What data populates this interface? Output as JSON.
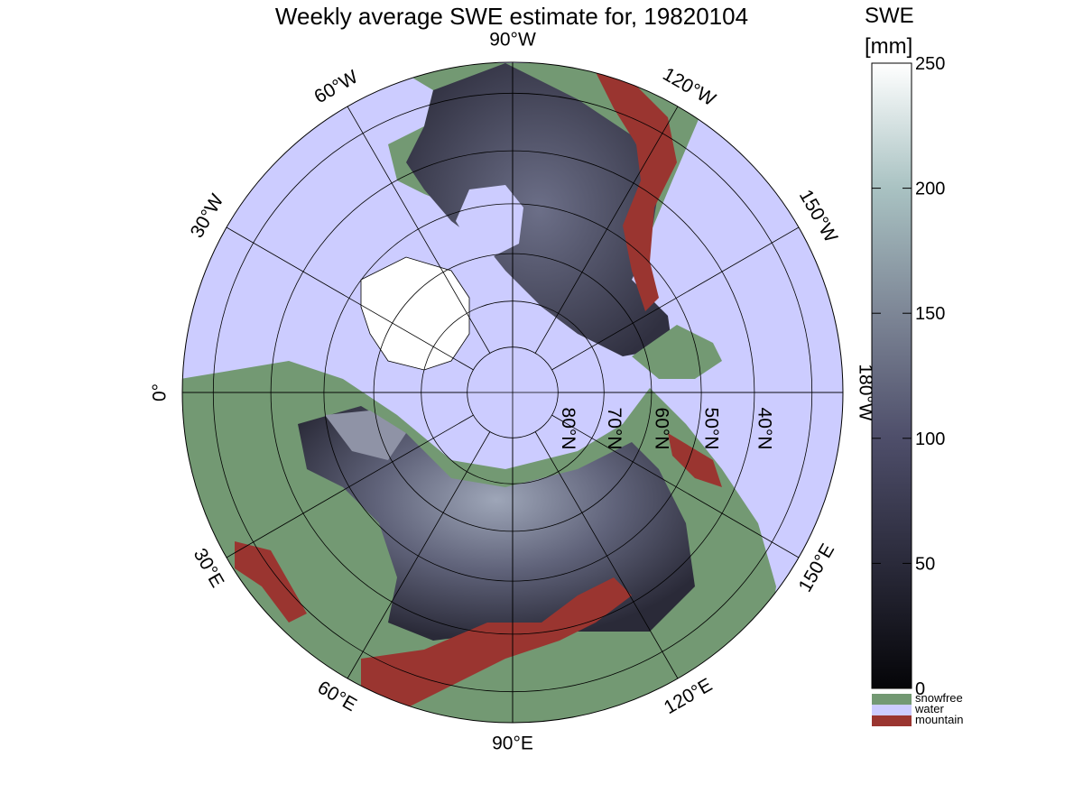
{
  "chart_data": {
    "type": "heatmap",
    "title": "Weekly average SWE estimate for, 19820104",
    "projection": "north polar stereographic",
    "longitude_labels": [
      {
        "lon": 0,
        "text": "0°"
      },
      {
        "lon": -30,
        "text": "30°W"
      },
      {
        "lon": -60,
        "text": "60°W"
      },
      {
        "lon": -90,
        "text": "90°W"
      },
      {
        "lon": -120,
        "text": "120°W"
      },
      {
        "lon": -150,
        "text": "150°W"
      },
      {
        "lon": 180,
        "text": "180°W"
      },
      {
        "lon": 30,
        "text": "30°E"
      },
      {
        "lon": 60,
        "text": "60°E"
      },
      {
        "lon": 90,
        "text": "90°E"
      },
      {
        "lon": 120,
        "text": "120°E"
      },
      {
        "lon": 150,
        "text": "150°E"
      }
    ],
    "latitude_labels": [
      {
        "lat": 80,
        "text": "80°N"
      },
      {
        "lat": 70,
        "text": "70°N"
      },
      {
        "lat": 60,
        "text": "60°N"
      },
      {
        "lat": 50,
        "text": "50°N"
      },
      {
        "lat": 40,
        "text": "40°N"
      }
    ],
    "colorbar": {
      "title_line1": "SWE",
      "title_line2": "[mm]",
      "min": 0,
      "max": 250,
      "ticks": [
        0,
        50,
        100,
        150,
        200,
        250
      ]
    },
    "categories": [
      {
        "name": "snowfree",
        "color": "#739973"
      },
      {
        "name": "water",
        "color": "#ccccff"
      },
      {
        "name": "mountain",
        "color": "#9a3530"
      }
    ],
    "grid": true
  }
}
